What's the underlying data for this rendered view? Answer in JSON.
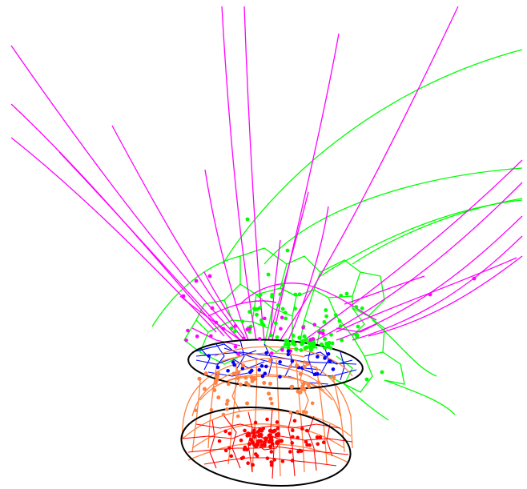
{
  "figure": {
    "background": "#ffffff",
    "colors": {
      "magenta": "#ff00ff",
      "green": "#00ff00",
      "blue": "#0000ff",
      "orange": "#ff8040",
      "red": "#ff0000",
      "black": "#000000"
    },
    "layers": [
      "magenta-rays",
      "green-voronoi",
      "blue-disk-mesh",
      "orange-dome-mesh",
      "red-disk-mesh",
      "black-ellipses",
      "site-points"
    ]
  }
}
